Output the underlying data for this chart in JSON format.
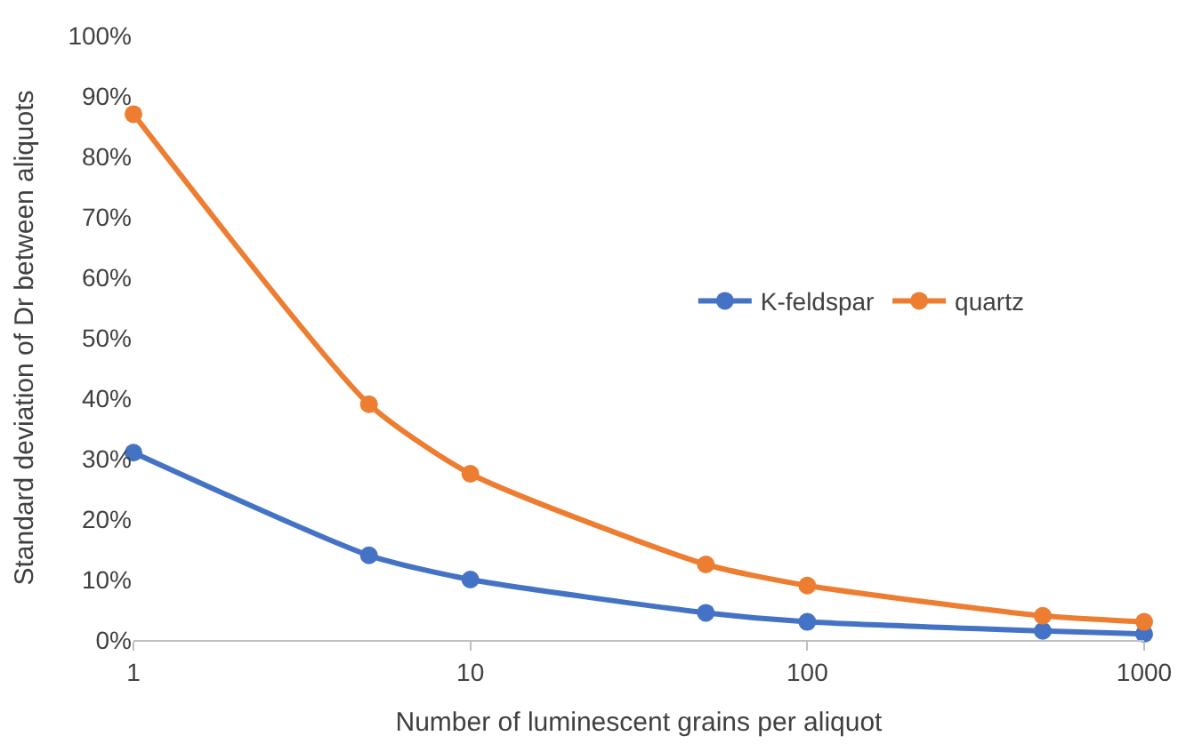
{
  "chart_data": {
    "type": "line",
    "xlabel": "Number of luminescent grains per aliquot",
    "ylabel": "Standard deviation of Dr between aliquots",
    "x": [
      1,
      5,
      10,
      50,
      100,
      500,
      1000
    ],
    "series": [
      {
        "name": "K-feldspar",
        "color": "#4472c4",
        "values": [
          31,
          14,
          10,
          4.5,
          3,
          1.5,
          1
        ]
      },
      {
        "name": "quartz",
        "color": "#ed7d31",
        "values": [
          87,
          39,
          27.5,
          12.5,
          9,
          4,
          3
        ]
      }
    ],
    "log": "x",
    "xlim": [
      1,
      1000
    ],
    "xticks": [
      1,
      10,
      100,
      1000
    ],
    "ylim": [
      0,
      100
    ],
    "yticks": [
      {
        "value": 0,
        "label": "0%"
      },
      {
        "value": 10,
        "label": "10%"
      },
      {
        "value": 20,
        "label": "20%"
      },
      {
        "value": 30,
        "label": "30%"
      },
      {
        "value": 40,
        "label": "40%"
      },
      {
        "value": 50,
        "label": "50%"
      },
      {
        "value": 60,
        "label": "60%"
      },
      {
        "value": 70,
        "label": "70%"
      },
      {
        "value": 80,
        "label": "80%"
      },
      {
        "value": 90,
        "label": "90%"
      },
      {
        "value": 100,
        "label": "100%"
      }
    ],
    "grid": false,
    "legend": "right",
    "marker": "circle",
    "line_style": "solid"
  }
}
